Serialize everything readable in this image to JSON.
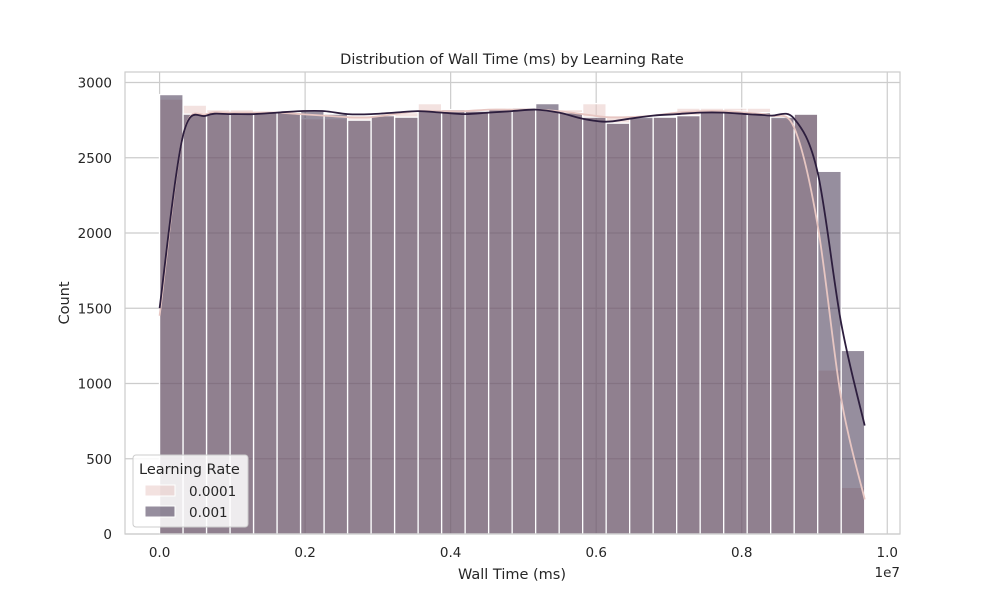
{
  "chart_data": {
    "type": "histogram",
    "title": "Distribution of Wall Time (ms) by Learning Rate",
    "xlabel": "Wall Time (ms)",
    "ylabel": "Count",
    "x_offset_label": "1e7",
    "x_ticks": [
      0.0,
      0.2,
      0.4,
      0.6,
      0.8,
      1.0
    ],
    "x_tick_labels": [
      "0.0",
      "0.2",
      "0.4",
      "0.6",
      "0.8",
      "1.0"
    ],
    "y_ticks": [
      0,
      500,
      1000,
      1500,
      2000,
      2500,
      3000
    ],
    "y_tick_labels": [
      "0",
      "500",
      "1000",
      "1500",
      "2000",
      "2500",
      "3000"
    ],
    "xlim": [
      -0.0475,
      1.0175
    ],
    "ylim": [
      0,
      3070
    ],
    "grid": true,
    "legend": {
      "title": "Learning Rate",
      "placement": "lower-left"
    },
    "bin_edges": [
      0.0,
      0.0323,
      0.0646,
      0.0969,
      0.1292,
      0.1615,
      0.1938,
      0.2261,
      0.2584,
      0.2907,
      0.323,
      0.3553,
      0.3876,
      0.4199,
      0.4522,
      0.4845,
      0.5168,
      0.5491,
      0.5814,
      0.6137,
      0.646,
      0.6783,
      0.7106,
      0.7429,
      0.7752,
      0.8075,
      0.8398,
      0.8721,
      0.9044,
      0.9367,
      0.969
    ],
    "series": [
      {
        "name": "0.0001",
        "color": "#e7c6c2",
        "values": [
          2890,
          2850,
          2820,
          2820,
          2810,
          2810,
          2760,
          2760,
          2770,
          2780,
          2800,
          2860,
          2820,
          2820,
          2820,
          2830,
          2820,
          2820,
          2860,
          2780,
          2760,
          2770,
          2830,
          2830,
          2830,
          2830,
          2760,
          2790,
          1090,
          310
        ],
        "kde": [
          1450,
          2650,
          2790,
          2800,
          2800,
          2800,
          2790,
          2780,
          2770,
          2770,
          2790,
          2810,
          2810,
          2810,
          2820,
          2820,
          2820,
          2810,
          2790,
          2770,
          2770,
          2780,
          2800,
          2810,
          2810,
          2800,
          2780,
          2700,
          2050,
          900,
          230
        ]
      },
      {
        "name": "0.001",
        "color": "#2d1e3e",
        "values": [
          2920,
          2790,
          2800,
          2800,
          2800,
          2800,
          2810,
          2790,
          2750,
          2780,
          2770,
          2810,
          2820,
          2810,
          2820,
          2830,
          2860,
          2800,
          2770,
          2730,
          2770,
          2770,
          2780,
          2810,
          2810,
          2800,
          2770,
          2790,
          2410,
          1220
        ],
        "kde": [
          1500,
          2650,
          2780,
          2790,
          2790,
          2800,
          2810,
          2810,
          2790,
          2790,
          2800,
          2810,
          2800,
          2790,
          2800,
          2810,
          2820,
          2800,
          2760,
          2740,
          2760,
          2780,
          2790,
          2800,
          2800,
          2790,
          2780,
          2760,
          2400,
          1400,
          720
        ]
      }
    ]
  }
}
